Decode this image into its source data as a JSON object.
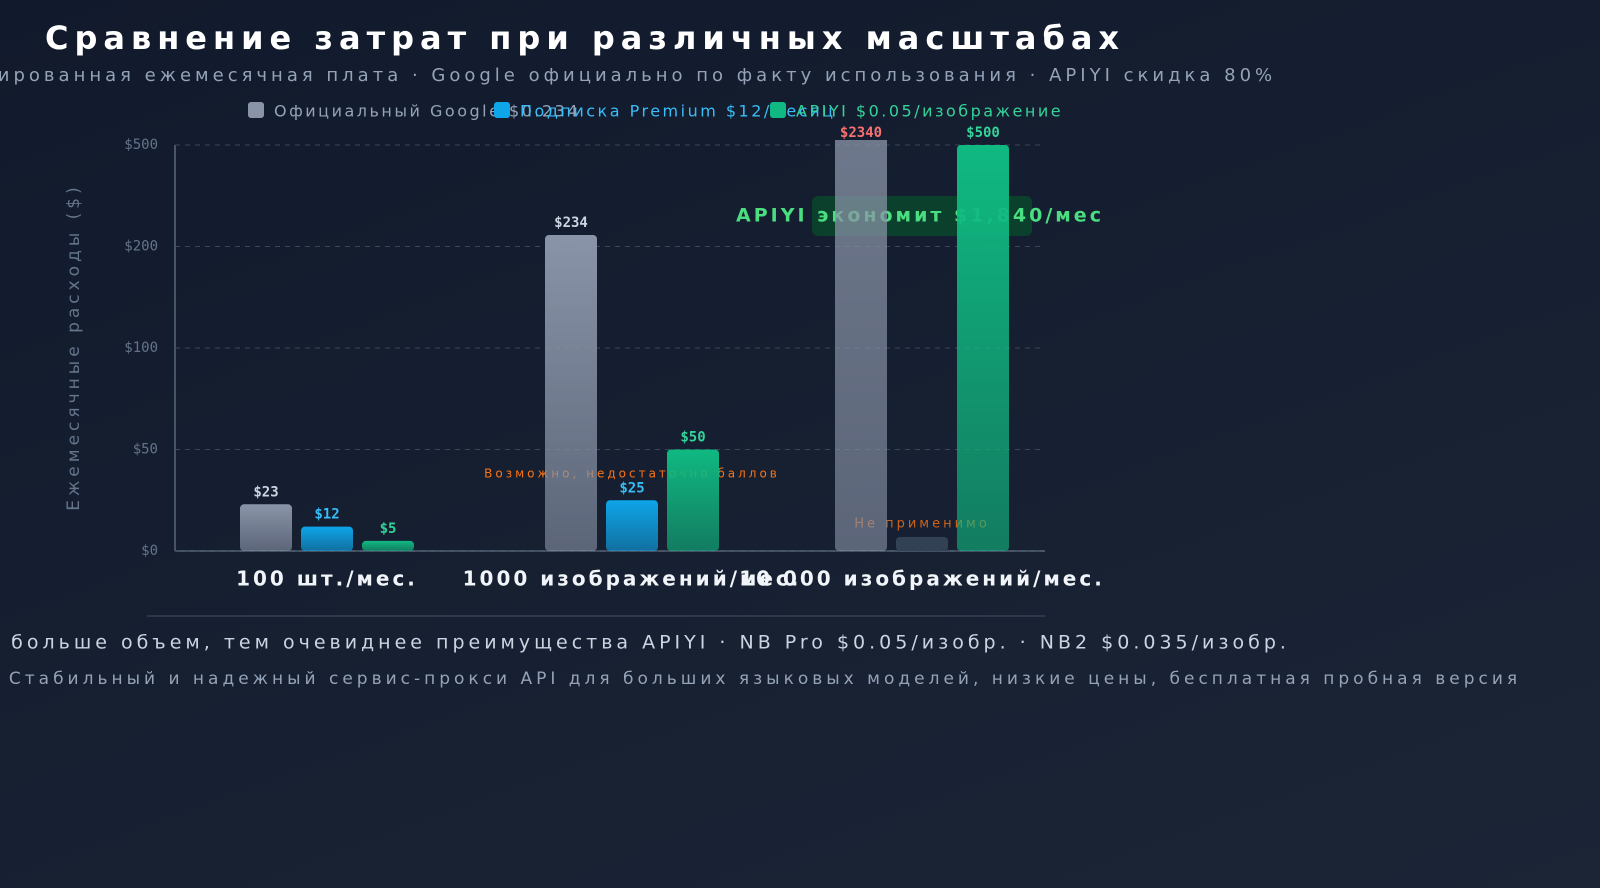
{
  "chart_data": {
    "type": "bar",
    "title": "Сравнение затрат при различных масштабах",
    "subtitle": "Фиксированная ежемесячная плата · Google официально по факту использования · APIYI скидка 80%",
    "y_label": "Ежемесячные расходы ($)",
    "categories": [
      "100 шт./мес.",
      "1000 изображений/мес.",
      "10 000 изображений/мес."
    ],
    "series": [
      {
        "name": "Официальный Google $0.234",
        "color": "#8a94a8",
        "values": [
          23,
          234,
          2340
        ],
        "value_labels": [
          "$23",
          "$234",
          "$2340"
        ]
      },
      {
        "name": "Подписка Premium $12/месяц",
        "color": "#0ea5e9",
        "values": [
          12,
          25,
          null
        ],
        "value_labels": [
          "$12",
          "$25",
          null
        ]
      },
      {
        "name": "APIYI $0.05/изображение",
        "color": "#10b981",
        "values": [
          5,
          50,
          500
        ],
        "value_labels": [
          "$5",
          "$50",
          "$500"
        ]
      }
    ],
    "ylim": [
      0,
      500
    ],
    "yticks": [
      {
        "value": 0,
        "label": "$0"
      },
      {
        "value": 50,
        "label": "$50"
      },
      {
        "value": 100,
        "label": "$100"
      },
      {
        "value": 200,
        "label": "$200"
      },
      {
        "value": 500,
        "label": "$500"
      }
    ],
    "grid": true,
    "legend": "top",
    "annotations": [
      "APIYI экономит $1,840/мес",
      "Возможно, недостаточно баллов",
      "Не применимо"
    ],
    "footer": [
      "Чем больше объем, тем очевиднее преимущества APIYI · NB Pro $0.05/изобр. · NB2 $0.035/изобр.",
      "Стабильный и надежный сервис-прокси API для больших языковых моделей, низкие цены, бесплатная пробная версия"
    ]
  }
}
